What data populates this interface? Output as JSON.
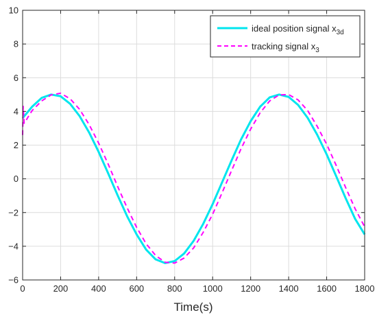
{
  "chart_data": {
    "type": "line",
    "title": "",
    "xlabel": "Time(s)",
    "ylabel": "",
    "xlim": [
      0,
      1800
    ],
    "ylim": [
      -6,
      10
    ],
    "xticks": [
      0,
      200,
      400,
      600,
      800,
      1000,
      1200,
      1400,
      1600,
      1800
    ],
    "yticks": [
      -6,
      -4,
      -2,
      0,
      2,
      4,
      6,
      8,
      10
    ],
    "xtick_labels": [
      "0",
      "200",
      "400",
      "600",
      "800",
      "1000",
      "1200",
      "1400",
      "1600",
      "1800"
    ],
    "ytick_labels": [
      "−6",
      "−4",
      "−2",
      "0",
      "2",
      "4",
      "6",
      "8",
      "10"
    ],
    "grid": true,
    "legend_position": "top-right",
    "series": [
      {
        "name": "ideal position signal x",
        "name_subscript": "3d",
        "color": "#00e5ee",
        "style": "solid",
        "x": [
          0,
          50,
          100,
          150,
          200,
          250,
          300,
          350,
          400,
          450,
          500,
          550,
          600,
          650,
          700,
          750,
          800,
          850,
          900,
          950,
          1000,
          1050,
          1100,
          1150,
          1200,
          1250,
          1300,
          1350,
          1400,
          1450,
          1500,
          1550,
          1600,
          1650,
          1700,
          1750,
          1800
        ],
        "y": [
          3.6,
          4.28,
          4.8,
          5.0,
          4.9,
          4.45,
          3.72,
          2.75,
          1.6,
          0.33,
          -0.98,
          -2.22,
          -3.3,
          -4.2,
          -4.78,
          -5.0,
          -4.88,
          -4.43,
          -3.68,
          -2.68,
          -1.5,
          -0.2,
          1.1,
          2.35,
          3.42,
          4.28,
          4.83,
          5.0,
          4.86,
          4.38,
          3.62,
          2.62,
          1.45,
          0.16,
          -1.15,
          -2.38,
          -3.3
        ]
      },
      {
        "name": "tracking signal x",
        "name_subscript": "3",
        "color": "#ff00ff",
        "style": "dashed",
        "x": [
          0,
          3,
          8,
          15,
          25,
          50,
          100,
          150,
          200,
          250,
          300,
          350,
          400,
          450,
          500,
          550,
          600,
          650,
          700,
          750,
          800,
          850,
          900,
          950,
          1000,
          1050,
          1100,
          1150,
          1200,
          1250,
          1300,
          1350,
          1400,
          1450,
          1500,
          1550,
          1600,
          1650,
          1700,
          1750,
          1800
        ],
        "y": [
          2.6,
          4.3,
          3.3,
          3.4,
          3.6,
          4.05,
          4.62,
          4.98,
          5.08,
          4.75,
          4.12,
          3.22,
          2.12,
          0.88,
          -0.45,
          -1.72,
          -2.88,
          -3.85,
          -4.55,
          -4.95,
          -5.0,
          -4.7,
          -4.1,
          -3.18,
          -2.1,
          -0.82,
          0.5,
          1.8,
          2.95,
          3.92,
          4.62,
          4.98,
          5.0,
          4.68,
          4.05,
          3.12,
          2.05,
          0.8,
          -0.52,
          -1.78,
          -2.85
        ]
      }
    ]
  }
}
